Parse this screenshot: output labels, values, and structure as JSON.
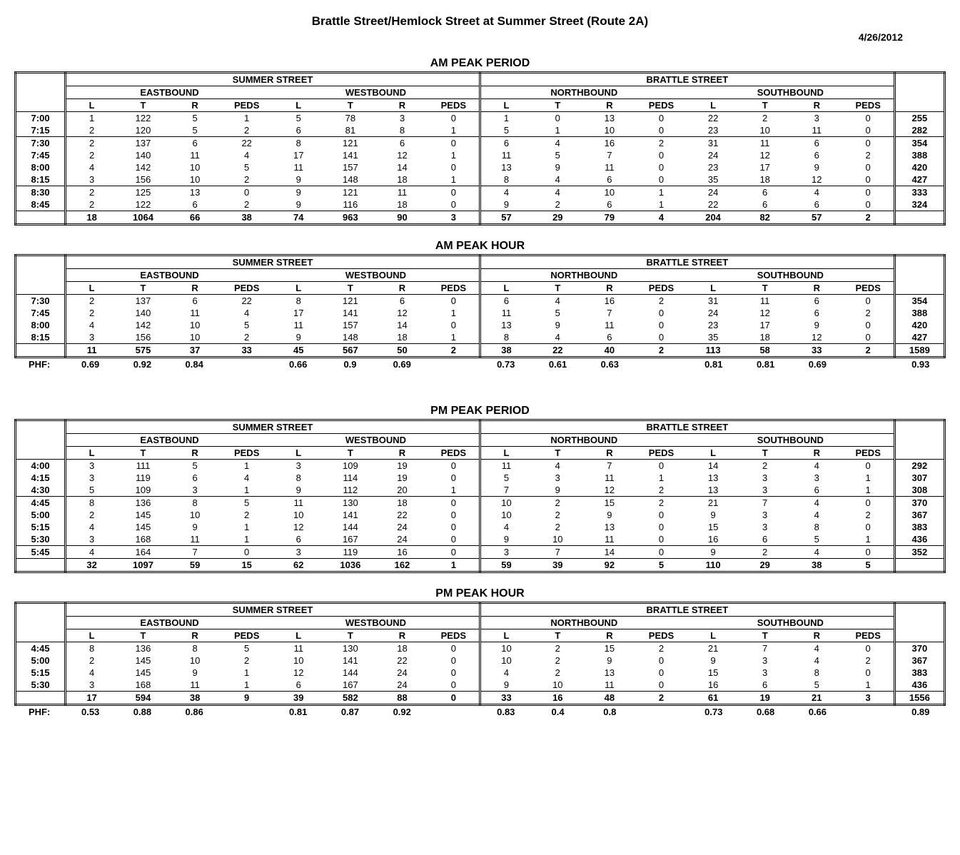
{
  "title": "Brattle Street/Hemlock Street at Summer Street (Route 2A)",
  "date": "4/26/2012",
  "streets": [
    "SUMMER STREET",
    "BRATTLE STREET"
  ],
  "directions": [
    "EASTBOUND",
    "WESTBOUND",
    "NORTHBOUND",
    "SOUTHBOUND"
  ],
  "movements": [
    "L",
    "T",
    "R",
    "PEDS"
  ],
  "phf_label": "PHF:",
  "sections": [
    {
      "title": "AM PEAK PERIOD",
      "rows": [
        {
          "t": "7:00",
          "v": [
            1,
            122,
            5,
            1,
            5,
            78,
            3,
            0,
            1,
            0,
            13,
            0,
            22,
            2,
            3,
            0
          ],
          "tot": 255
        },
        {
          "t": "7:15",
          "v": [
            2,
            120,
            5,
            2,
            6,
            81,
            8,
            1,
            5,
            1,
            10,
            0,
            23,
            10,
            11,
            0
          ],
          "tot": 282
        },
        {
          "t": "7:30",
          "v": [
            2,
            137,
            6,
            22,
            8,
            121,
            6,
            0,
            6,
            4,
            16,
            2,
            31,
            11,
            6,
            0
          ],
          "tot": 354
        },
        {
          "t": "7:45",
          "v": [
            2,
            140,
            11,
            4,
            17,
            141,
            12,
            1,
            11,
            5,
            7,
            0,
            24,
            12,
            6,
            2
          ],
          "tot": 388
        },
        {
          "t": "8:00",
          "v": [
            4,
            142,
            10,
            5,
            11,
            157,
            14,
            0,
            13,
            9,
            11,
            0,
            23,
            17,
            9,
            0
          ],
          "tot": 420
        },
        {
          "t": "8:15",
          "v": [
            3,
            156,
            10,
            2,
            9,
            148,
            18,
            1,
            8,
            4,
            6,
            0,
            35,
            18,
            12,
            0
          ],
          "tot": 427
        },
        {
          "t": "8:30",
          "v": [
            2,
            125,
            13,
            0,
            9,
            121,
            11,
            0,
            4,
            4,
            10,
            1,
            24,
            6,
            4,
            0
          ],
          "tot": 333
        },
        {
          "t": "8:45",
          "v": [
            2,
            122,
            6,
            2,
            9,
            116,
            18,
            0,
            9,
            2,
            6,
            1,
            22,
            6,
            6,
            0
          ],
          "tot": 324
        }
      ],
      "hlines_after": [
        1,
        5,
        7
      ],
      "totals": [
        18,
        1064,
        66,
        38,
        74,
        963,
        90,
        3,
        57,
        29,
        79,
        4,
        204,
        82,
        57,
        2
      ],
      "grand_total": "",
      "phf": null
    },
    {
      "title": "AM PEAK HOUR",
      "rows": [
        {
          "t": "7:30",
          "v": [
            2,
            137,
            6,
            22,
            8,
            121,
            6,
            0,
            6,
            4,
            16,
            2,
            31,
            11,
            6,
            0
          ],
          "tot": 354
        },
        {
          "t": "7:45",
          "v": [
            2,
            140,
            11,
            4,
            17,
            141,
            12,
            1,
            11,
            5,
            7,
            0,
            24,
            12,
            6,
            2
          ],
          "tot": 388
        },
        {
          "t": "8:00",
          "v": [
            4,
            142,
            10,
            5,
            11,
            157,
            14,
            0,
            13,
            9,
            11,
            0,
            23,
            17,
            9,
            0
          ],
          "tot": 420
        },
        {
          "t": "8:15",
          "v": [
            3,
            156,
            10,
            2,
            9,
            148,
            18,
            1,
            8,
            4,
            6,
            0,
            35,
            18,
            12,
            0
          ],
          "tot": 427
        }
      ],
      "hlines_after": [],
      "totals": [
        11,
        575,
        37,
        33,
        45,
        567,
        50,
        2,
        38,
        22,
        40,
        2,
        113,
        58,
        33,
        2
      ],
      "grand_total": 1589,
      "phf": [
        0.69,
        0.92,
        0.84,
        "",
        0.66,
        0.9,
        0.69,
        "",
        0.73,
        0.61,
        0.63,
        "",
        0.81,
        0.81,
        0.69,
        "",
        0.93
      ]
    },
    {
      "title": "PM PEAK PERIOD",
      "rows": [
        {
          "t": "4:00",
          "v": [
            3,
            111,
            5,
            1,
            3,
            109,
            19,
            0,
            11,
            4,
            7,
            0,
            14,
            2,
            4,
            0
          ],
          "tot": 292
        },
        {
          "t": "4:15",
          "v": [
            3,
            119,
            6,
            4,
            8,
            114,
            19,
            0,
            5,
            3,
            11,
            1,
            13,
            3,
            3,
            1
          ],
          "tot": 307
        },
        {
          "t": "4:30",
          "v": [
            5,
            109,
            3,
            1,
            9,
            112,
            20,
            1,
            7,
            9,
            12,
            2,
            13,
            3,
            6,
            1
          ],
          "tot": 308
        },
        {
          "t": "4:45",
          "v": [
            8,
            136,
            8,
            5,
            11,
            130,
            18,
            0,
            10,
            2,
            15,
            2,
            21,
            7,
            4,
            0
          ],
          "tot": 370
        },
        {
          "t": "5:00",
          "v": [
            2,
            145,
            10,
            2,
            10,
            141,
            22,
            0,
            10,
            2,
            9,
            0,
            9,
            3,
            4,
            2
          ],
          "tot": 367
        },
        {
          "t": "5:15",
          "v": [
            4,
            145,
            9,
            1,
            12,
            144,
            24,
            0,
            4,
            2,
            13,
            0,
            15,
            3,
            8,
            0
          ],
          "tot": 383
        },
        {
          "t": "5:30",
          "v": [
            3,
            168,
            11,
            1,
            6,
            167,
            24,
            0,
            9,
            10,
            11,
            0,
            16,
            6,
            5,
            1
          ],
          "tot": 436
        },
        {
          "t": "5:45",
          "v": [
            4,
            164,
            7,
            0,
            3,
            119,
            16,
            0,
            3,
            7,
            14,
            0,
            9,
            2,
            4,
            0
          ],
          "tot": 352
        }
      ],
      "hlines_after": [
        2,
        6
      ],
      "totals": [
        32,
        1097,
        59,
        15,
        62,
        1036,
        162,
        1,
        59,
        39,
        92,
        5,
        110,
        29,
        38,
        5
      ],
      "grand_total": "",
      "phf": null
    },
    {
      "title": "PM PEAK HOUR",
      "rows": [
        {
          "t": "4:45",
          "v": [
            8,
            136,
            8,
            5,
            11,
            130,
            18,
            0,
            10,
            2,
            15,
            2,
            21,
            7,
            4,
            0
          ],
          "tot": 370
        },
        {
          "t": "5:00",
          "v": [
            2,
            145,
            10,
            2,
            10,
            141,
            22,
            0,
            10,
            2,
            9,
            0,
            9,
            3,
            4,
            2
          ],
          "tot": 367
        },
        {
          "t": "5:15",
          "v": [
            4,
            145,
            9,
            1,
            12,
            144,
            24,
            0,
            4,
            2,
            13,
            0,
            15,
            3,
            8,
            0
          ],
          "tot": 383
        },
        {
          "t": "5:30",
          "v": [
            3,
            168,
            11,
            1,
            6,
            167,
            24,
            0,
            9,
            10,
            11,
            0,
            16,
            6,
            5,
            1
          ],
          "tot": 436
        }
      ],
      "hlines_after": [],
      "totals": [
        17,
        594,
        38,
        9,
        39,
        582,
        88,
        0,
        33,
        16,
        48,
        2,
        61,
        19,
        21,
        3
      ],
      "grand_total": 1556,
      "phf": [
        0.53,
        0.88,
        0.86,
        "",
        0.81,
        0.87,
        0.92,
        "",
        0.83,
        0.4,
        0.8,
        "",
        0.73,
        0.68,
        0.66,
        "",
        0.89
      ]
    }
  ]
}
